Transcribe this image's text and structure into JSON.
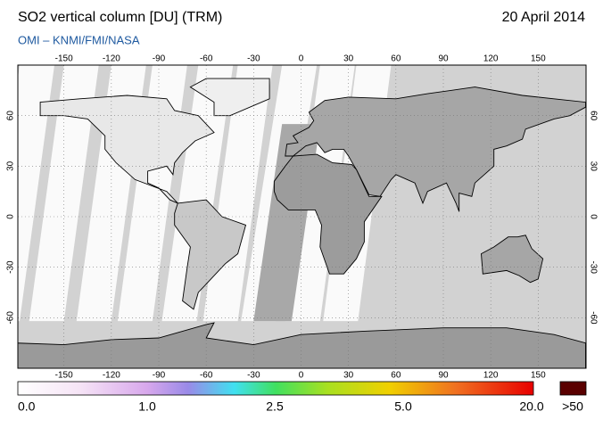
{
  "map": {
    "title": "SO2 vertical column [DU] (TRM)",
    "date": "20 April 2014",
    "source": "OMI  –  KNMI/FMI/NASA",
    "lon_ticks": [
      -150,
      -120,
      -90,
      -60,
      -30,
      0,
      30,
      60,
      90,
      120,
      150
    ],
    "lat_ticks": [
      -60,
      -30,
      0,
      30,
      60
    ],
    "colorbar": {
      "labels": [
        "0.0",
        "1.0",
        "2.5",
        "5.0",
        "20.0"
      ],
      "overflow": ">50"
    }
  }
}
